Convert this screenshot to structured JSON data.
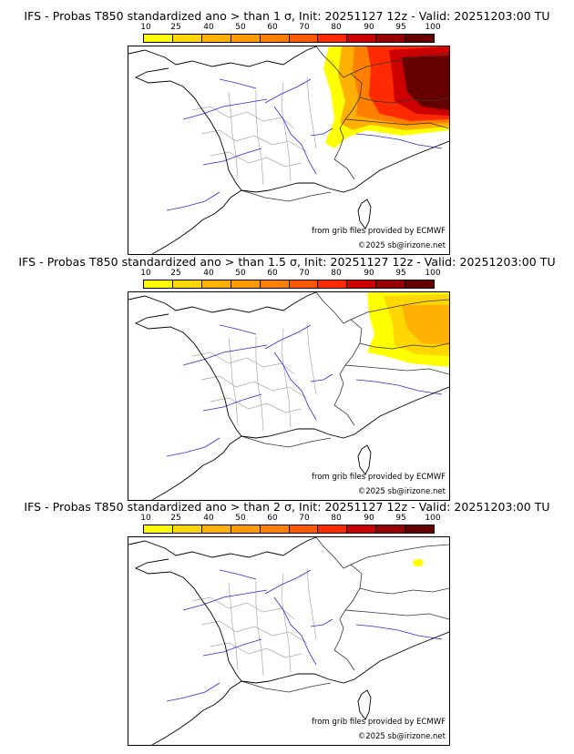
{
  "colorbar": {
    "ticks": [
      "10",
      "25",
      "40",
      "50",
      "60",
      "70",
      "80",
      "90",
      "95",
      "100"
    ],
    "colors": [
      "#ffff00",
      "#ffd700",
      "#ffb000",
      "#ff9a00",
      "#ff7f00",
      "#ff5a00",
      "#ff2a00",
      "#cc0000",
      "#990000",
      "#660000"
    ]
  },
  "credits": {
    "source": "from grib files provided by ECMWF",
    "copyright": "©2025 sb@irizone.net"
  },
  "panels": [
    {
      "title": "IFS - Probas T850  standardized ano > than 1 σ, Init: 20251127 12z - Valid: 20251203:00 TU",
      "sigma": 1,
      "intensity": "high"
    },
    {
      "title": "IFS - Probas T850  standardized ano > than 1.5 σ, Init: 20251127 12z - Valid: 20251203:00 TU",
      "sigma": 1.5,
      "intensity": "medium"
    },
    {
      "title": "IFS - Probas T850  standardized ano > than 2 σ, Init: 20251127 12z - Valid: 20251203:00 TU",
      "sigma": 2,
      "intensity": "low"
    }
  ]
}
